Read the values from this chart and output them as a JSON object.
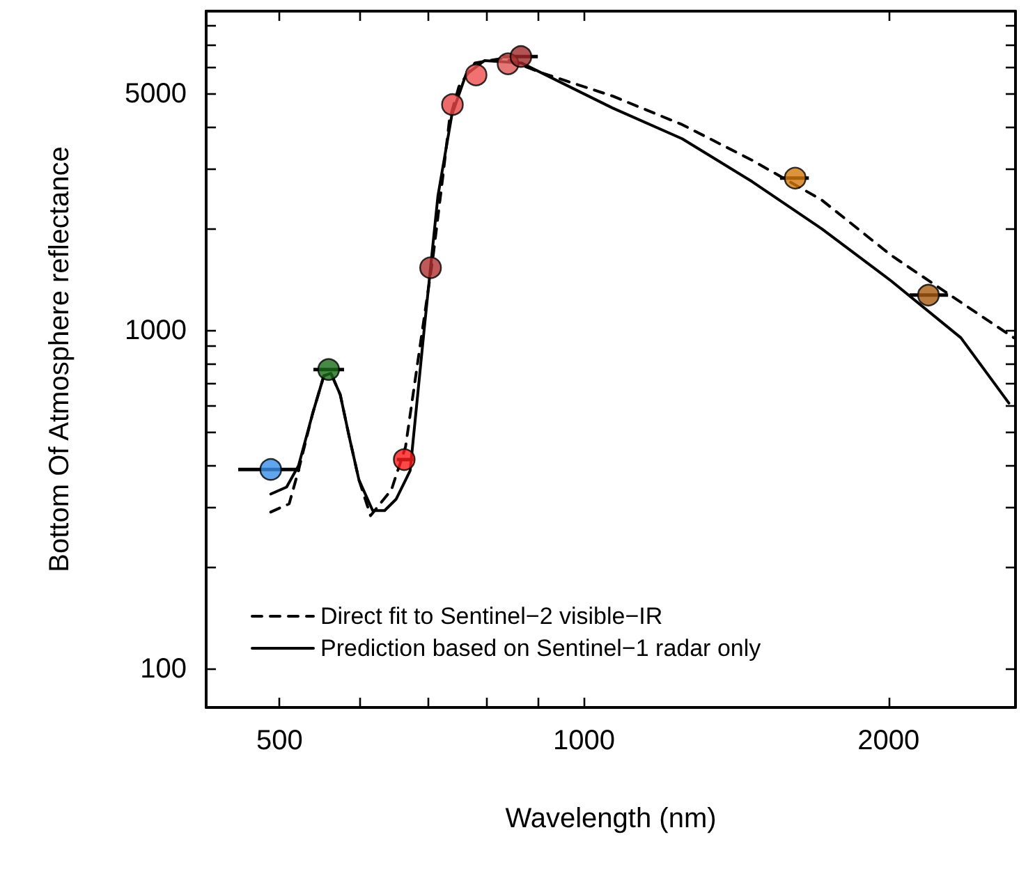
{
  "chart_data": {
    "type": "line",
    "xlabel": "Wavelength (nm)",
    "ylabel": "Bottom Of Atmosphere reflectance",
    "log": "xy",
    "grid": false,
    "legend": "bottom left",
    "xlim": [
      423,
      2670
    ],
    "ylim": [
      77,
      8800
    ],
    "xticks": [
      500,
      {
        "value": 600,
        "label": null
      },
      {
        "value": 700,
        "label": null
      },
      {
        "value": 800,
        "label": null
      },
      {
        "value": 900,
        "label": null
      },
      1000,
      2000
    ],
    "yticks": [
      100,
      {
        "value": 200,
        "label": null
      },
      {
        "value": 300,
        "label": null
      },
      {
        "value": 400,
        "label": null
      },
      {
        "value": 500,
        "label": null
      },
      {
        "value": 600,
        "label": null
      },
      {
        "value": 700,
        "label": null
      },
      {
        "value": 800,
        "label": null
      },
      {
        "value": 900,
        "label": null
      },
      1000,
      {
        "value": 2000,
        "label": null
      },
      {
        "value": 3000,
        "label": null
      },
      {
        "value": 4000,
        "label": null
      },
      5000,
      {
        "value": 6000,
        "label": null
      },
      {
        "value": 7000,
        "label": null
      },
      {
        "value": 8000,
        "label": null
      }
    ],
    "series": [
      {
        "name": "Direct fit to Sentinel−2 visible−IR",
        "color": "#000000",
        "line_style": "dashed",
        "marker": "none",
        "x": [
          490,
          511,
          522,
          539,
          553,
          562,
          574,
          586,
          599,
          615,
          645,
          666,
          687,
          709,
          725,
          736,
          752,
          780,
          832,
          905,
          1067,
          1250,
          1465,
          1717,
          2012,
          2358,
          2660
        ],
        "values": [
          291,
          308,
          387,
          569,
          736,
          748,
          647,
          484,
          362,
          284,
          339,
          454,
          865,
          1654,
          2851,
          4200,
          5266,
          6185,
          6390,
          5800,
          4937,
          4066,
          3193,
          2436,
          1670,
          1213,
          953
        ]
      },
      {
        "name": "Prediction based on Sentinel−1 radar only",
        "color": "#000000",
        "line_style": "solid",
        "marker": "none",
        "x": [
          490,
          508,
          522,
          539,
          553,
          562,
          574,
          586,
          599,
          618,
          635,
          652,
          666,
          673,
          695,
          717,
          740,
          764,
          797,
          867,
          1067,
          1250,
          1465,
          1717,
          2012,
          2358,
          2630
        ],
        "values": [
          329,
          345,
          399,
          569,
          736,
          748,
          647,
          484,
          362,
          294,
          294,
          318,
          362,
          386,
          1016,
          2506,
          4340,
          5705,
          6285,
          6185,
          4552,
          3693,
          2762,
          2002,
          1403,
          953,
          611
        ]
      },
      {
        "type": "scatter",
        "marker": "circle",
        "x": [
          490,
          559,
          664,
          705,
          741,
          782,
          841,
          866,
          1617,
          2190
        ],
        "values": [
          389,
          768,
          416,
          1535,
          4660,
          5700,
          6150,
          6460,
          2825,
          1274
        ],
        "colors": [
          "#3a8ee8",
          "#1a6b1a",
          "#ff1a1a",
          "#b03030",
          "#e84545",
          "#ee4c4c",
          "#e05555",
          "#a02828",
          "#d4780a",
          "#a85a10"
        ],
        "xerrors": [
          [
            455,
            524
          ],
          [
            540,
            579
          ],
          [
            653,
            678
          ],
          null,
          null,
          null,
          null,
          [
            830,
            900
          ],
          [
            1562,
            1668
          ],
          [
            2098,
            2290
          ]
        ]
      }
    ]
  }
}
